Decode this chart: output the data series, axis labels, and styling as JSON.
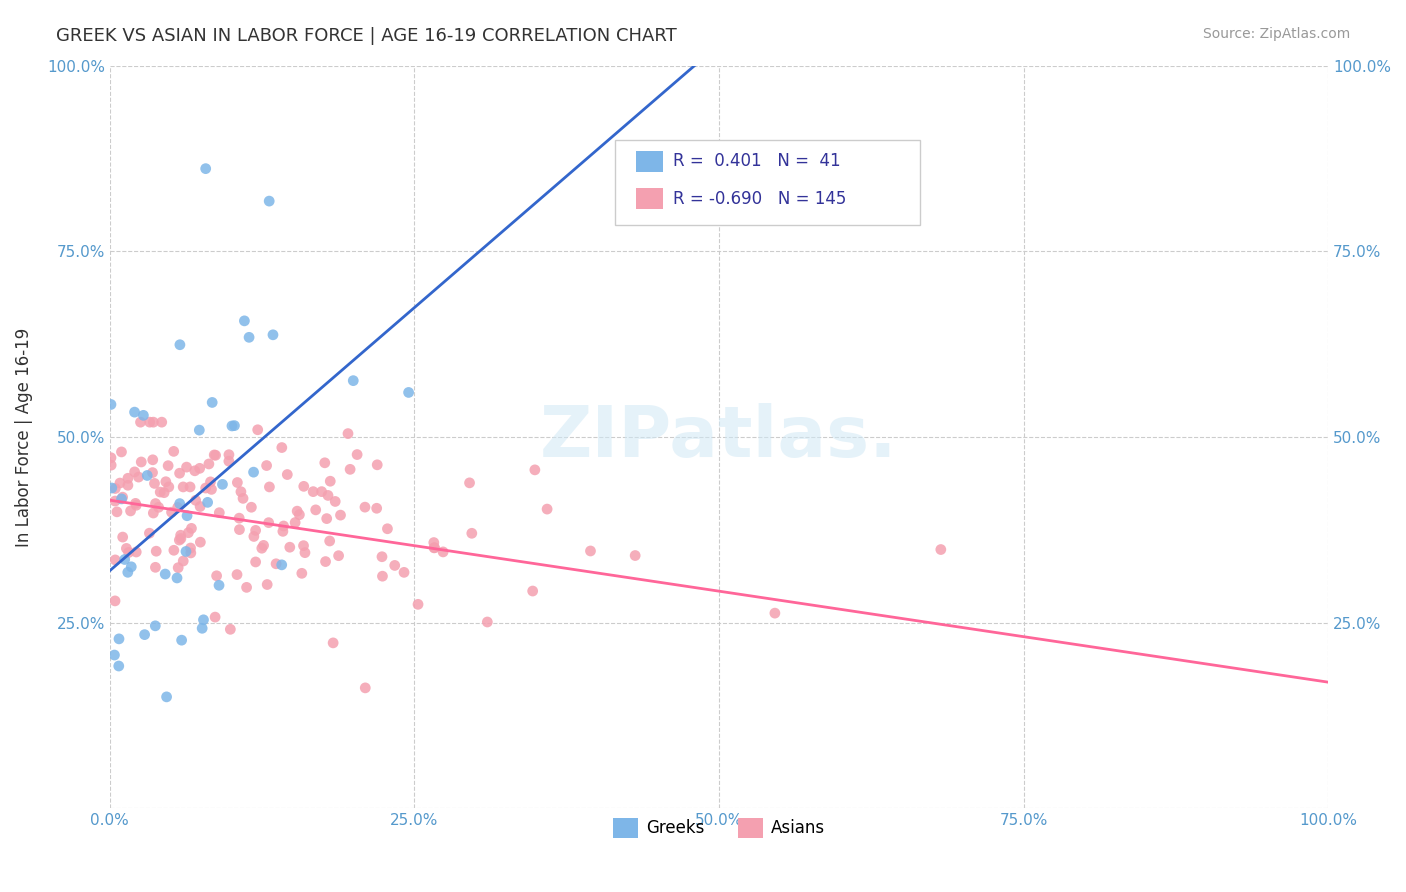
{
  "title": "GREEK VS ASIAN IN LABOR FORCE | AGE 16-19 CORRELATION CHART",
  "source": "Source: ZipAtlas.com",
  "ylabel": "In Labor Force | Age 16-19",
  "xlim": [
    0.0,
    1.0
  ],
  "ylim": [
    0.0,
    1.0
  ],
  "xticks": [
    0.0,
    0.25,
    0.5,
    0.75,
    1.0
  ],
  "yticks": [
    0.0,
    0.25,
    0.5,
    0.75,
    1.0
  ],
  "xticklabels": [
    "0.0%",
    "25.0%",
    "50.0%",
    "75.0%",
    "100.0%"
  ],
  "yticklabels": [
    "",
    "25.0%",
    "50.0%",
    "75.0%",
    "100.0%"
  ],
  "greek_color": "#7EB6E8",
  "asian_color": "#F4A0B0",
  "greek_line_color": "#3366CC",
  "asian_line_color": "#FF6699",
  "legend_R_greek": "0.401",
  "legend_N_greek": "41",
  "legend_R_asian": "-0.690",
  "legend_N_asian": "145",
  "greek_line_x": [
    0.0,
    0.48
  ],
  "greek_line_y": [
    0.32,
    1.0
  ],
  "asian_line_x": [
    0.0,
    1.0
  ],
  "asian_line_y": [
    0.415,
    0.17
  ]
}
